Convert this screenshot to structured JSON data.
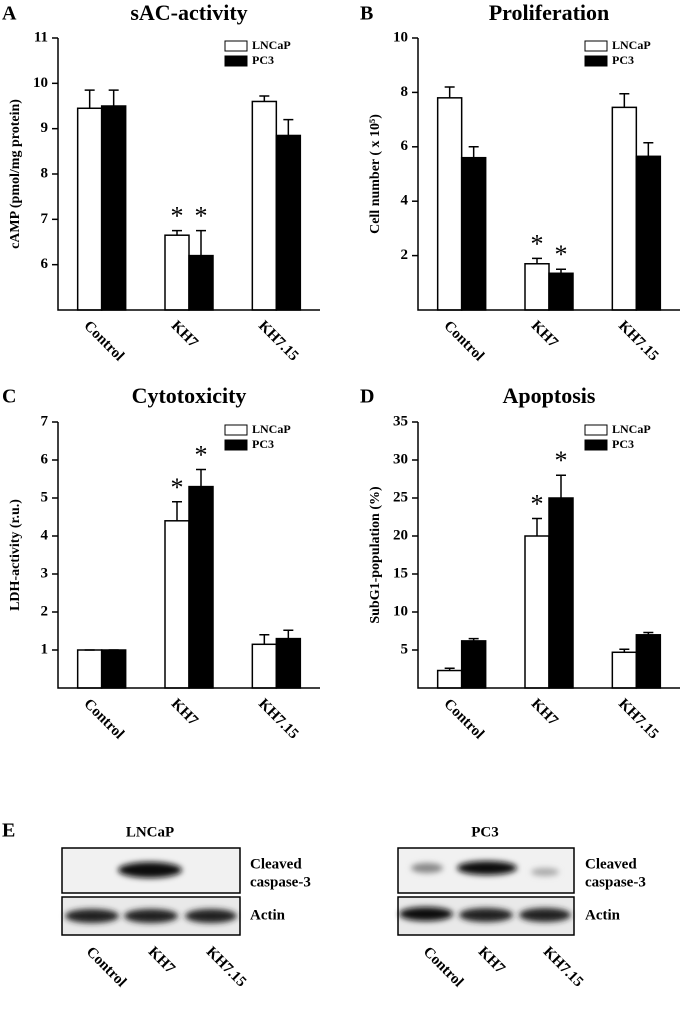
{
  "chart_data": [
    {
      "type": "bar",
      "panel": "A",
      "title": "sAC-activity",
      "y_label": "cAMP (pmol/mg protein)",
      "categories": [
        "Control",
        "KH7",
        "KH7.15"
      ],
      "series": [
        {
          "name": "LNCaP",
          "color": "#ffffff",
          "values": [
            9.45,
            6.65,
            9.6
          ],
          "errors": [
            0.4,
            0.1,
            0.12
          ]
        },
        {
          "name": "PC3",
          "color": "#000000",
          "values": [
            9.5,
            6.2,
            8.85
          ],
          "errors": [
            0.35,
            0.55,
            0.35
          ]
        }
      ],
      "ylim": [
        5,
        11
      ],
      "yticks": [
        6,
        7,
        8,
        9,
        10,
        11
      ],
      "legend": "upper right",
      "annotations": [
        {
          "text": "*",
          "series": 0,
          "category": 1
        },
        {
          "text": "*",
          "series": 1,
          "category": 1
        }
      ]
    },
    {
      "type": "bar",
      "panel": "B",
      "title": "Proliferation",
      "y_label": "Cell number ( x 10⁵)",
      "categories": [
        "Control",
        "KH7",
        "KH7.15"
      ],
      "series": [
        {
          "name": "LNCaP",
          "color": "#ffffff",
          "values": [
            7.8,
            1.7,
            7.45
          ],
          "errors": [
            0.4,
            0.2,
            0.5
          ]
        },
        {
          "name": "PC3",
          "color": "#000000",
          "values": [
            5.6,
            1.35,
            5.65
          ],
          "errors": [
            0.4,
            0.15,
            0.5
          ]
        }
      ],
      "ylim": [
        0,
        10
      ],
      "yticks": [
        2,
        4,
        6,
        8,
        10
      ],
      "legend": "upper right",
      "annotations": [
        {
          "text": "*",
          "series": 0,
          "category": 1
        },
        {
          "text": "*",
          "series": 1,
          "category": 1
        }
      ]
    },
    {
      "type": "bar",
      "panel": "C",
      "title": "Cytotoxicity",
      "y_label": "LDH-activity (r.u.)",
      "categories": [
        "Control",
        "KH7",
        "KH7.15"
      ],
      "series": [
        {
          "name": "LNCaP",
          "color": "#ffffff",
          "values": [
            1,
            4.4,
            1.15
          ],
          "errors": [
            0,
            0.5,
            0.25
          ]
        },
        {
          "name": "PC3",
          "color": "#000000",
          "values": [
            1,
            5.3,
            1.3
          ],
          "errors": [
            0,
            0.45,
            0.22
          ]
        }
      ],
      "ylim": [
        0,
        7
      ],
      "yticks": [
        1,
        2,
        3,
        4,
        5,
        6,
        7
      ],
      "legend": "upper right",
      "annotations": [
        {
          "text": "*",
          "series": 0,
          "category": 1
        },
        {
          "text": "*",
          "series": 1,
          "category": 1
        }
      ]
    },
    {
      "type": "bar",
      "panel": "D",
      "title": "Apoptosis",
      "y_label": "SubG1-population (%)",
      "categories": [
        "Control",
        "KH7",
        "KH7.15"
      ],
      "series": [
        {
          "name": "LNCaP",
          "color": "#ffffff",
          "values": [
            2.3,
            20,
            4.7
          ],
          "errors": [
            0.3,
            2.3,
            0.4
          ]
        },
        {
          "name": "PC3",
          "color": "#000000",
          "values": [
            6.2,
            25,
            7
          ],
          "errors": [
            0.3,
            3,
            0.3
          ]
        }
      ],
      "ylim": [
        0,
        35
      ],
      "yticks": [
        5,
        10,
        15,
        20,
        25,
        30,
        35
      ],
      "legend": "upper right",
      "annotations": [
        {
          "text": "*",
          "series": 0,
          "category": 1
        },
        {
          "text": "*",
          "series": 1,
          "category": 1
        }
      ]
    }
  ],
  "blot": {
    "panel": "E",
    "blots": [
      {
        "title": "LNCaP",
        "bands": [
          [
            "Cleaved",
            "caspase-3"
          ],
          [
            "Actin"
          ]
        ],
        "lanes": [
          "Control",
          "KH7",
          "KH7.15"
        ]
      },
      {
        "title": "PC3",
        "bands": [
          [
            "Cleaved",
            "caspase-3"
          ],
          [
            "Actin"
          ]
        ],
        "lanes": [
          "Control",
          "KH7",
          "KH7.15"
        ]
      }
    ]
  }
}
